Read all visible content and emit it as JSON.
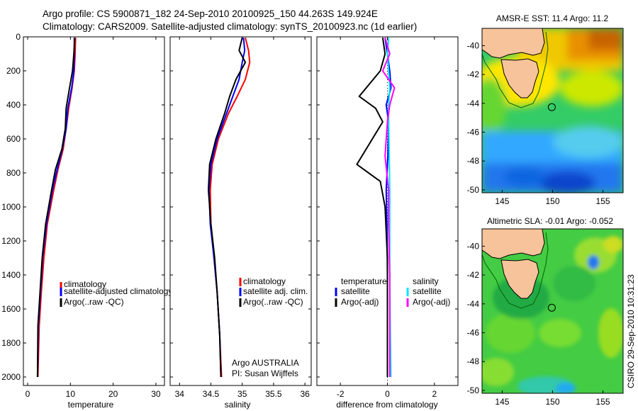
{
  "header": {
    "line1": "Argo profile: CS 5900871_182 24-Sep-2010 20100925_150 44.263S 149.924E",
    "line2": "Climatology: CARS2009. Satellite-adjusted climatology: synTS_20100923.nc (1d earlier)"
  },
  "colors": {
    "climatology": "#ff0000",
    "satellite": "#0000ff",
    "argo": "#000000",
    "sal_satellite": "#00e5ff",
    "sal_argo": "#ff00ff"
  },
  "chart_data": [
    {
      "type": "line",
      "xlabel": "temperature",
      "ylabel": "",
      "xlim": [
        -1,
        32
      ],
      "ylim": [
        2050,
        0
      ],
      "xticks": [
        0,
        10,
        20,
        30
      ],
      "yticks": [
        0,
        200,
        400,
        600,
        800,
        1000,
        1200,
        1400,
        1600,
        1800,
        2000
      ],
      "legend": [
        "climatology",
        "satellite-adjusted climatology",
        "Argo(..raw -QC)"
      ],
      "series": [
        {
          "name": "climatology",
          "color": "#ff0000",
          "x": [
            11.2,
            11.1,
            10.9,
            10.4,
            9.6,
            9.0,
            8.3,
            7.1,
            6.1,
            4.6,
            3.8,
            3.2,
            2.7,
            2.4
          ],
          "y": [
            5,
            100,
            200,
            300,
            420,
            540,
            660,
            780,
            900,
            1100,
            1300,
            1500,
            1700,
            2000
          ]
        },
        {
          "name": "satellite-adjusted climatology",
          "color": "#0000ff",
          "x": [
            10.9,
            10.9,
            10.8,
            10.3,
            9.4,
            9.0,
            8.1,
            6.9,
            5.8,
            4.4,
            3.5,
            3.0,
            2.5,
            2.3
          ],
          "y": [
            5,
            100,
            200,
            300,
            420,
            540,
            660,
            780,
            900,
            1100,
            1300,
            1500,
            1700,
            2000
          ]
        },
        {
          "name": "Argo(..raw -QC)",
          "color": "#000000",
          "x": [
            11.0,
            10.8,
            10.5,
            9.8,
            9.0,
            8.8,
            8.0,
            6.5,
            5.6,
            4.2,
            3.4,
            2.9,
            2.4,
            2.3
          ],
          "y": [
            5,
            100,
            200,
            300,
            420,
            540,
            660,
            780,
            900,
            1100,
            1300,
            1500,
            1700,
            2000
          ]
        }
      ]
    },
    {
      "type": "line",
      "xlabel": "salinity",
      "ylabel": "",
      "xlim": [
        33.85,
        36.1
      ],
      "ylim": [
        2050,
        0
      ],
      "xticks": [
        34,
        34.5,
        35,
        35.5,
        36
      ],
      "legend": [
        "climatology",
        "satellite adj. clim.",
        "Argo(..raw -QC)"
      ],
      "annotation": [
        "Argo AUSTRALIA",
        "PI: Susan Wijffels"
      ],
      "series": [
        {
          "name": "climatology",
          "color": "#ff0000",
          "x": [
            35.05,
            35.1,
            35.12,
            35.05,
            34.92,
            34.78,
            34.62,
            34.52,
            34.49,
            34.5,
            34.55,
            34.6,
            34.64,
            34.67
          ],
          "y": [
            5,
            80,
            150,
            250,
            350,
            450,
            600,
            750,
            900,
            1100,
            1300,
            1500,
            1750,
            2000
          ]
        },
        {
          "name": "satellite adj. clim.",
          "color": "#0000ff",
          "x": [
            35.02,
            35.04,
            35.0,
            34.95,
            34.85,
            34.75,
            34.6,
            34.5,
            34.47,
            34.49,
            34.55,
            34.6,
            34.64,
            34.66
          ],
          "y": [
            5,
            80,
            150,
            250,
            350,
            450,
            600,
            750,
            900,
            1100,
            1300,
            1500,
            1750,
            2000
          ]
        },
        {
          "name": "Argo(..raw -QC)",
          "color": "#000000",
          "x": [
            35.0,
            34.95,
            35.05,
            34.9,
            34.8,
            34.72,
            34.58,
            34.48,
            34.46,
            34.5,
            34.56,
            34.6,
            34.64,
            34.66
          ],
          "y": [
            5,
            80,
            150,
            250,
            350,
            450,
            600,
            750,
            900,
            1100,
            1300,
            1500,
            1750,
            2000
          ]
        }
      ]
    },
    {
      "type": "line",
      "xlabel": "difference from climatology",
      "ylabel": "",
      "xlim": [
        -3,
        3
      ],
      "ylim": [
        2050,
        0
      ],
      "xticks": [
        -2,
        0,
        2
      ],
      "legend": [
        "temperature",
        "satellite",
        "Argo(-adj)",
        "salinity",
        "satellite",
        "Argo(-adj)"
      ],
      "series": [
        {
          "name": "satellite",
          "color": "#0000ff",
          "x": [
            -0.1,
            0.0,
            0.1,
            0.15,
            -0.05,
            0.05,
            0.02,
            -0.05,
            -0.02,
            0.0,
            0.0,
            0.0
          ],
          "y": [
            5,
            100,
            200,
            300,
            400,
            500,
            700,
            900,
            1100,
            1400,
            1700,
            2000
          ]
        },
        {
          "name": "Argo(-adj)",
          "color": "#000000",
          "x": [
            -0.2,
            -0.1,
            -0.3,
            -1.2,
            -0.5,
            -0.2,
            -1.3,
            -0.3,
            -0.1,
            0.0,
            0.0,
            0.0
          ],
          "y": [
            5,
            100,
            200,
            350,
            420,
            500,
            750,
            850,
            1000,
            1300,
            1700,
            2000
          ]
        },
        {
          "name": "satellite",
          "color": "#00e5ff",
          "x": [
            0.05,
            0.0,
            0.05,
            0.1,
            0.05,
            0.05,
            0.08,
            0.1,
            0.1,
            0.1,
            0.12,
            0.15
          ],
          "y": [
            5,
            100,
            200,
            300,
            400,
            500,
            700,
            900,
            1100,
            1400,
            1700,
            2000
          ]
        },
        {
          "name": "Argo(-adj)",
          "color": "#ff00ff",
          "x": [
            -0.1,
            0.1,
            -0.2,
            0.3,
            0.1,
            0.0,
            -0.1,
            0.05,
            0.05,
            0.1,
            0.1,
            0.1
          ],
          "y": [
            5,
            100,
            200,
            300,
            400,
            500,
            700,
            900,
            1100,
            1400,
            1700,
            2000
          ]
        }
      ]
    },
    {
      "type": "heatmap",
      "title": "AMSR-E SST: 11.4 Argo: 11.2",
      "xlim": [
        143,
        157
      ],
      "ylim": [
        -50.2,
        -38.8
      ],
      "xticks": [
        145,
        150,
        155
      ],
      "yticks": [
        -40,
        -42,
        -44,
        -46,
        -48,
        -50
      ],
      "marker": {
        "lon": 149.924,
        "lat": -44.263
      }
    },
    {
      "type": "heatmap",
      "title": "Altimetric SLA: -0.01 Argo: -0.052",
      "xlim": [
        143,
        157
      ],
      "ylim": [
        -50.2,
        -38.8
      ],
      "xticks": [
        145,
        150,
        155
      ],
      "yticks": [
        -40,
        -42,
        -44,
        -46,
        -48,
        -50
      ],
      "marker": {
        "lon": 149.924,
        "lat": -44.263
      }
    }
  ],
  "stamp": "CSIRO 29-Sep-2010 10:31:23"
}
